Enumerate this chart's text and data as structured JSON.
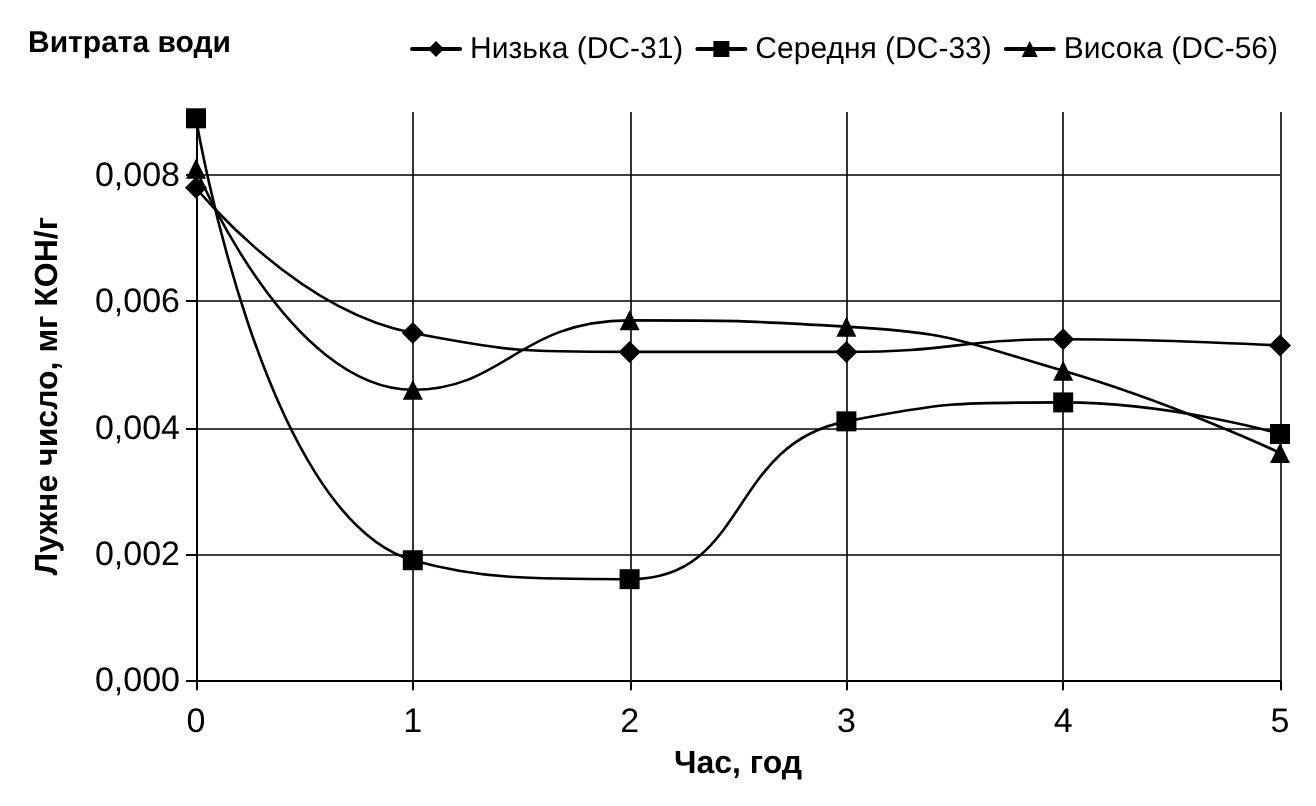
{
  "chart_data": {
    "type": "line",
    "legend_title": "Витрата води",
    "xlabel": "Час, год",
    "ylabel": "Лужне число, мг КОН/г",
    "x": [
      0,
      1,
      2,
      3,
      4,
      5
    ],
    "series": [
      {
        "name": "Низька (DC-31)",
        "color": "#000000",
        "marker": "diamond",
        "values": [
          0.0078,
          0.0055,
          0.0052,
          0.0052,
          0.0054,
          0.0053
        ]
      },
      {
        "name": "Середня (DC-33)",
        "color": "#000000",
        "marker": "square",
        "values": [
          0.0089,
          0.0019,
          0.0016,
          0.0041,
          0.0044,
          0.0039
        ]
      },
      {
        "name": "Висока (DC-56)",
        "color": "#000000",
        "marker": "triangle",
        "values": [
          0.0081,
          0.0046,
          0.0057,
          0.0056,
          0.0049,
          0.0036
        ]
      }
    ],
    "xlim": [
      0,
      5
    ],
    "xticks": [
      0,
      1,
      2,
      3,
      4,
      5
    ],
    "ylim": [
      0,
      0.009
    ],
    "yticks": [
      {
        "value": 0,
        "label": "0,000"
      },
      {
        "value": 0.002,
        "label": "0,002"
      },
      {
        "value": 0.004,
        "label": "0,004"
      },
      {
        "value": 0.006,
        "label": "0,006"
      },
      {
        "value": 0.008,
        "label": "0,008"
      }
    ],
    "grid": true,
    "legend": "top",
    "line_style": "solid"
  }
}
